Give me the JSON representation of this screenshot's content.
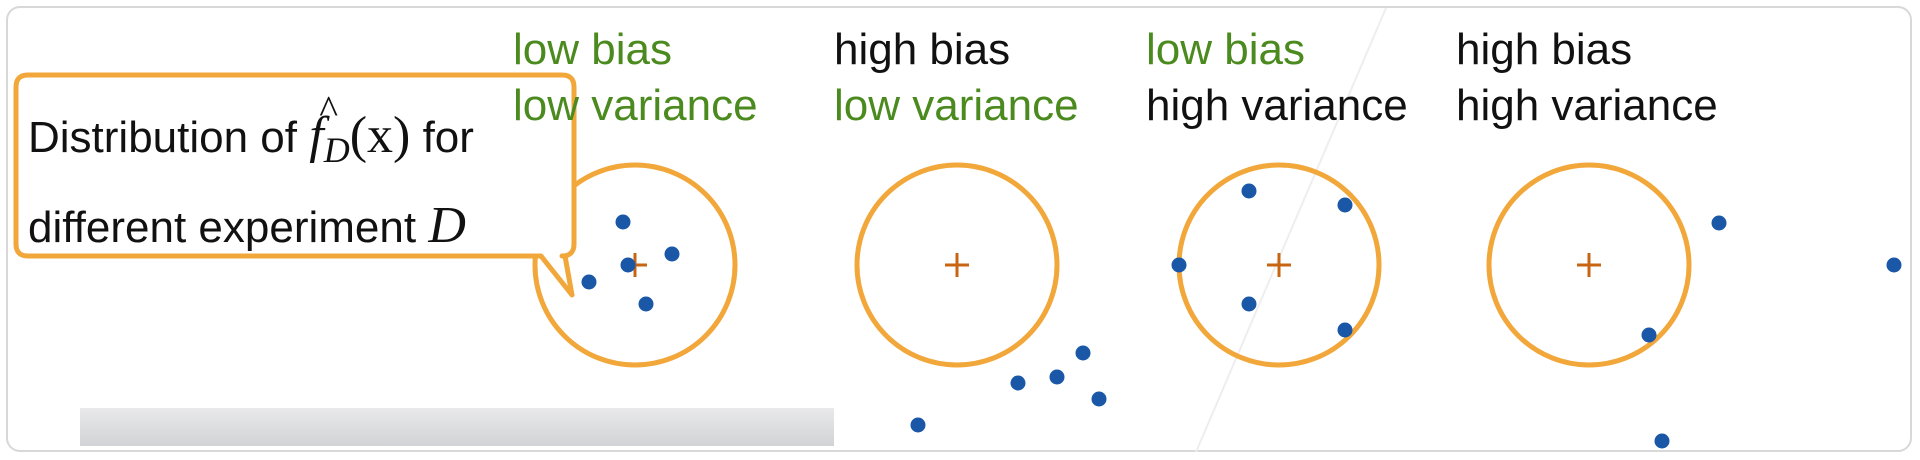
{
  "panels": [
    {
      "id": "low-bias-low-variance",
      "line1": {
        "text": "low bias",
        "color": "green"
      },
      "line2": {
        "text": "low variance",
        "color": "green"
      },
      "points": [
        [
          -0.12,
          0.43
        ],
        [
          0.37,
          0.11
        ],
        [
          -0.46,
          -0.17
        ],
        [
          -0.07,
          0.0
        ],
        [
          0.11,
          -0.39
        ]
      ]
    },
    {
      "id": "high-bias-low-variance",
      "line1": {
        "text": "high bias",
        "color": "black"
      },
      "line2": {
        "text": "low variance",
        "color": "green"
      },
      "points": [
        [
          0.61,
          -1.18
        ],
        [
          1.26,
          -0.88
        ],
        [
          1.0,
          -1.12
        ],
        [
          1.42,
          -1.34
        ],
        [
          -0.39,
          -1.6
        ]
      ]
    },
    {
      "id": "low-bias-high-variance",
      "line1": {
        "text": "low bias",
        "color": "green"
      },
      "line2": {
        "text": "high variance",
        "color": "black"
      },
      "points": [
        [
          -0.3,
          0.74
        ],
        [
          0.66,
          0.6
        ],
        [
          -1.0,
          0.0
        ],
        [
          -0.3,
          -0.39
        ],
        [
          0.66,
          -0.65
        ]
      ]
    },
    {
      "id": "high-bias-high-variance",
      "line1": {
        "text": "high bias",
        "color": "black"
      },
      "line2": {
        "text": "high variance",
        "color": "black"
      },
      "points": [
        [
          1.3,
          0.42
        ],
        [
          0.6,
          -0.7
        ],
        [
          3.05,
          0.0
        ],
        [
          0.73,
          -1.76
        ]
      ]
    }
  ],
  "callout": {
    "prefix": "Distribution of",
    "hat": "^",
    "f": "f",
    "subscript": "D",
    "arg": "(x)",
    "suffix": "for",
    "line2_text": "different experiment",
    "line2_var": "D"
  },
  "colors": {
    "ring": "#f2a73b",
    "center_mark": "#c76512",
    "point": "#1a57a6",
    "green_text": "#4b8a1e"
  }
}
